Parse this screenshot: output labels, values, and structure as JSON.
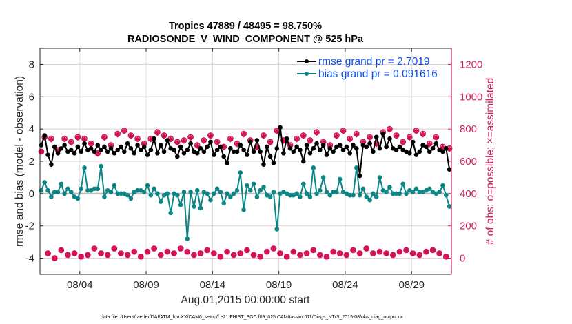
{
  "chart_data": {
    "type": "line",
    "title": [
      "Tropics 47889 / 48495 = 98.750%",
      "RADIOSONDE_V_WIND_COMPONENT @ 525 hPa"
    ],
    "xlabel": "Aug.01,2015 00:00:00 start",
    "ylabel": "rmse and bias (model - observation)",
    "ylabel_right": "# of obs: o=possible; ×=assimilated",
    "footnote": "data file: /Users/raeder/DAI/ATM_forcXX/CAM6_setup/f.e21.FHIST_BGC.f09_025.CAM6assim.011/Diags_NTrS_2015-08/obs_diag_output.nc",
    "x_start_day": 0.1,
    "x_step_days": 0.25,
    "xlim_days": [
      0,
      31
    ],
    "xticks": [
      {
        "day": 3,
        "label": "08/04"
      },
      {
        "day": 8,
        "label": "08/09"
      },
      {
        "day": 13,
        "label": "08/14"
      },
      {
        "day": 18,
        "label": "08/19"
      },
      {
        "day": 23,
        "label": "08/24"
      },
      {
        "day": 28,
        "label": "08/29"
      }
    ],
    "ylim": [
      -5,
      9
    ],
    "yticks": [
      -4,
      -2,
      0,
      2,
      4,
      6,
      8
    ],
    "ylim_right": [
      -100,
      1300
    ],
    "yticks_right": [
      0,
      200,
      400,
      600,
      800,
      1000,
      1200
    ],
    "grid": true,
    "legend": {
      "position": "top-right",
      "entries": [
        "rmse grand pr = 2.7019",
        "bias grand pr = 0.091616"
      ]
    },
    "colors": {
      "rmse": "#000000",
      "bias": "#0e8585",
      "obs": "#d4145a",
      "legend_text": "#0b4fe6",
      "zero_line": "#bfbfbf",
      "grid": "#e6c8d6"
    },
    "series": [
      {
        "name": "rmse",
        "axis": "left",
        "values": [
          3.0,
          3.6,
          2.4,
          1.8,
          2.9,
          2.5,
          2.8,
          3.0,
          2.6,
          2.7,
          2.5,
          2.9,
          2.6,
          3.1,
          2.7,
          2.8,
          2.6,
          3.0,
          2.7,
          2.9,
          2.6,
          2.8,
          2.5,
          2.7,
          2.9,
          2.6,
          3.1,
          2.8,
          2.5,
          3.0,
          2.7,
          2.9,
          2.4,
          2.7,
          3.4,
          2.5,
          3.0,
          2.6,
          3.3,
          2.8,
          2.7,
          2.3,
          2.9,
          2.5,
          2.7,
          3.1,
          2.6,
          2.5,
          2.8,
          2.6,
          2.9,
          3.2,
          2.4,
          2.7,
          2.9,
          2.3,
          1.9,
          2.8,
          2.6,
          2.6,
          3.0,
          2.7,
          2.4,
          3.2,
          2.6,
          3.3,
          2.6,
          1.8,
          2.9,
          2.3,
          1.9,
          2.8,
          4.1,
          2.5,
          3.4,
          2.8,
          2.6,
          2.9,
          2.7,
          2.0,
          3.0,
          2.5,
          2.8,
          3.1,
          2.7,
          3.0,
          2.4,
          2.8,
          2.6,
          2.9,
          3.0,
          2.7,
          2.9,
          2.5,
          3.0,
          2.8,
          1.1,
          3.0,
          2.9,
          3.1,
          2.6,
          3.5,
          2.8,
          3.7,
          2.9,
          3.4,
          2.8,
          2.7,
          2.9,
          2.7,
          2.6,
          2.5,
          3.2,
          2.4,
          2.6,
          3.0,
          2.9,
          2.6,
          2.8,
          3.1,
          2.7,
          2.6,
          2.8,
          1.5
        ]
      },
      {
        "name": "bias",
        "axis": "left",
        "values": [
          0.2,
          0.7,
          0.2,
          -0.2,
          0.1,
          0.1,
          0.6,
          0.0,
          0.3,
          0.1,
          -0.2,
          -0.3,
          0.3,
          1.6,
          0.2,
          0.2,
          0.3,
          0.3,
          1.7,
          -0.2,
          0.2,
          0.1,
          0.5,
          0.0,
          0.0,
          0.0,
          -0.1,
          -0.3,
          0.1,
          0.2,
          0.2,
          0.1,
          0.5,
          -0.1,
          0.3,
          0.0,
          -0.5,
          -0.1,
          0.0,
          -1.2,
          0.0,
          -0.1,
          -0.7,
          0.1,
          -2.8,
          0.1,
          -0.8,
          0.2,
          -0.9,
          0.1,
          0.0,
          -0.4,
          0.0,
          0.3,
          0.1,
          -0.6,
          0.0,
          -0.2,
          0.0,
          0.2,
          1.3,
          -1.0,
          0.5,
          0.2,
          0.6,
          -0.2,
          0.2,
          0.4,
          -0.1,
          -0.2,
          0.1,
          -2.2,
          0.0,
          0.1,
          0.0,
          -0.1,
          -0.1,
          0.0,
          -0.2,
          0.6,
          0.0,
          -0.2,
          1.6,
          0.0,
          0.2,
          1.0,
          0.1,
          -0.1,
          0.1,
          0.1,
          0.9,
          0.1,
          0.0,
          -0.1,
          -0.1,
          1.6,
          -0.1,
          0.3,
          -0.2,
          -0.4,
          0.0,
          -0.2,
          1.0,
          0.2,
          0.1,
          0.4,
          0.0,
          0.0,
          0.0,
          0.6,
          0.0,
          0.2,
          0.1,
          0.3,
          0.1,
          0.1,
          0.2,
          0.3,
          0.1,
          0.0,
          0.1,
          0.5,
          -0.1,
          -0.8
        ]
      },
      {
        "name": "obs_possible",
        "axis": "right",
        "marker": "o",
        "values": [
          660,
          750,
          30,
          740,
          0,
          670,
          50,
          740,
          20,
          720,
          30,
          750,
          10,
          740,
          20,
          710,
          60,
          650,
          30,
          750,
          20,
          700,
          60,
          770,
          30,
          790,
          20,
          760,
          40,
          740,
          10,
          710,
          40,
          740,
          60,
          780,
          20,
          760,
          40,
          740,
          30,
          720,
          60,
          730,
          40,
          750,
          20,
          700,
          30,
          730,
          50,
          760,
          30,
          720,
          10,
          690,
          40,
          740,
          20,
          710,
          30,
          770,
          50,
          730,
          20,
          690,
          10,
          760,
          40,
          720,
          60,
          790,
          30,
          730,
          10,
          700,
          40,
          740,
          20,
          760,
          30,
          730,
          50,
          780,
          20,
          720,
          10,
          700,
          40,
          760,
          30,
          790,
          20,
          740,
          50,
          770,
          30,
          720,
          60,
          750,
          30,
          710,
          40,
          780,
          30,
          800,
          20,
          760,
          40,
          720,
          50,
          750,
          30,
          790,
          20,
          770,
          40,
          710,
          50,
          750,
          30,
          690,
          10,
          680
        ]
      },
      {
        "name": "obs_assimilated",
        "axis": "right",
        "marker": "x",
        "values": [
          660,
          745,
          30,
          735,
          0,
          665,
          50,
          735,
          20,
          715,
          30,
          745,
          10,
          735,
          20,
          705,
          60,
          645,
          30,
          745,
          20,
          695,
          60,
          765,
          30,
          785,
          20,
          755,
          40,
          735,
          10,
          705,
          40,
          735,
          60,
          775,
          20,
          755,
          40,
          735,
          30,
          715,
          60,
          725,
          40,
          745,
          20,
          695,
          30,
          725,
          50,
          755,
          30,
          715,
          10,
          685,
          40,
          735,
          20,
          705,
          30,
          765,
          50,
          725,
          20,
          685,
          10,
          755,
          40,
          715,
          60,
          785,
          30,
          725,
          10,
          695,
          40,
          735,
          20,
          755,
          30,
          725,
          50,
          775,
          20,
          715,
          10,
          695,
          40,
          755,
          30,
          785,
          20,
          735,
          50,
          765,
          30,
          715,
          60,
          745,
          30,
          705,
          40,
          775,
          30,
          795,
          20,
          755,
          40,
          715,
          50,
          745,
          30,
          785,
          20,
          765,
          40,
          705,
          50,
          745,
          30,
          685,
          10,
          675
        ]
      }
    ]
  }
}
